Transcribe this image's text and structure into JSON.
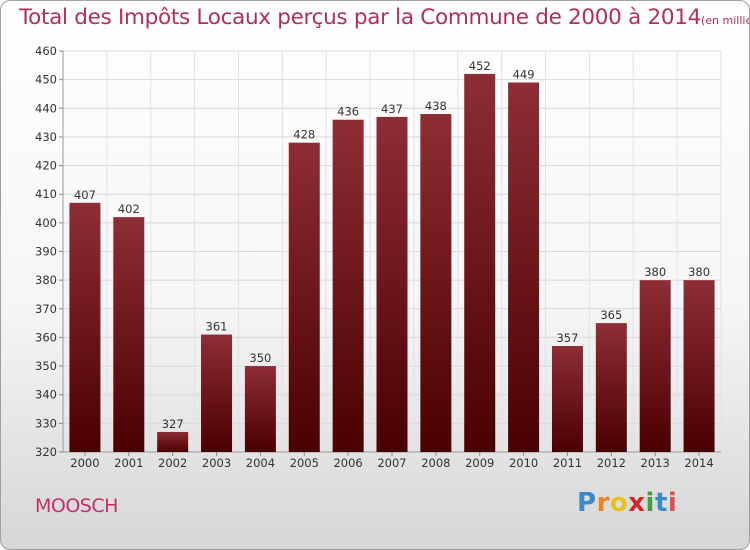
{
  "header": {
    "title": "Total des Impôts Locaux perçus par la Commune de 2000 à 2014",
    "unit": "(en milliers d'€)"
  },
  "footer": {
    "commune": "MOOSCH",
    "logo": [
      "P",
      "r",
      "o",
      "x",
      "i",
      "t",
      "i"
    ]
  },
  "colors": {
    "title": "#b0305a",
    "bar_top": "#8e2d35",
    "bar_bottom": "#4a0000",
    "logo": [
      "#3a8ac8",
      "#f08020",
      "#e8c020",
      "#d02828",
      "#40a040",
      "#3a8ac8",
      "#e05050"
    ]
  },
  "chart_data": {
    "type": "bar",
    "title": "Total des Impôts Locaux perçus par la Commune de 2000 à 2014",
    "xlabel": "",
    "ylabel": "",
    "categories": [
      "2000",
      "2001",
      "2002",
      "2003",
      "2004",
      "2005",
      "2006",
      "2007",
      "2008",
      "2009",
      "2010",
      "2011",
      "2012",
      "2013",
      "2014"
    ],
    "values": [
      407,
      402,
      327,
      361,
      350,
      428,
      436,
      437,
      438,
      452,
      449,
      357,
      365,
      380,
      380
    ],
    "ylim": [
      320,
      460
    ],
    "yticks": [
      320,
      330,
      340,
      350,
      360,
      370,
      380,
      390,
      400,
      410,
      420,
      430,
      440,
      450,
      460
    ],
    "grid": true
  }
}
